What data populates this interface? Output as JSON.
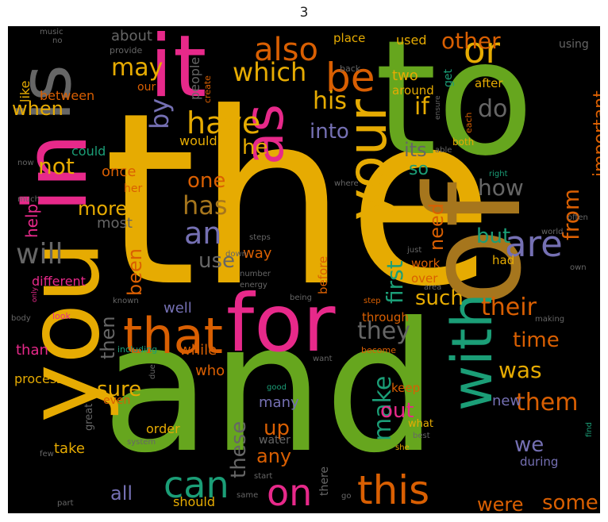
{
  "title": "3",
  "colors": {
    "gold": "#E6AB02",
    "green": "#66A61E",
    "pink": "#E7298A",
    "orange": "#D95F02",
    "teal": "#1B9E77",
    "purple": "#7570B3",
    "brown": "#A6761D",
    "gray": "#666666"
  },
  "words": [
    {
      "text": "the"
    },
    {
      "text": "and"
    },
    {
      "text": "to"
    },
    {
      "text": "of"
    },
    {
      "text": "you"
    },
    {
      "text": "in"
    },
    {
      "text": "it"
    },
    {
      "text": "is"
    },
    {
      "text": "for"
    },
    {
      "text": "that"
    },
    {
      "text": "your"
    },
    {
      "text": "as"
    },
    {
      "text": "with"
    },
    {
      "text": "or"
    },
    {
      "text": "be"
    },
    {
      "text": "this"
    },
    {
      "text": "can"
    },
    {
      "text": "on"
    },
    {
      "text": "are"
    },
    {
      "text": "an"
    },
    {
      "text": "also"
    },
    {
      "text": "have"
    },
    {
      "text": "will"
    },
    {
      "text": "which"
    },
    {
      "text": "from"
    },
    {
      "text": "other"
    },
    {
      "text": "by"
    },
    {
      "text": "was"
    },
    {
      "text": "they"
    },
    {
      "text": "their"
    },
    {
      "text": "them"
    },
    {
      "text": "important"
    },
    {
      "text": "not"
    },
    {
      "text": "has"
    },
    {
      "text": "if"
    },
    {
      "text": "his"
    },
    {
      "text": "at"
    },
    {
      "text": "such"
    },
    {
      "text": "first"
    },
    {
      "text": "but"
    },
    {
      "text": "do"
    },
    {
      "text": "how"
    },
    {
      "text": "more"
    },
    {
      "text": "make"
    },
    {
      "text": "these"
    },
    {
      "text": "use"
    },
    {
      "text": "one"
    },
    {
      "text": "he"
    },
    {
      "text": "may"
    },
    {
      "text": "been"
    },
    {
      "text": "when"
    },
    {
      "text": "time"
    },
    {
      "text": "into"
    },
    {
      "text": "need"
    },
    {
      "text": "sure"
    },
    {
      "text": "then"
    },
    {
      "text": "up"
    },
    {
      "text": "we"
    },
    {
      "text": "out"
    },
    {
      "text": "any"
    },
    {
      "text": "all"
    },
    {
      "text": "some"
    },
    {
      "text": "were"
    },
    {
      "text": "its"
    },
    {
      "text": "so"
    },
    {
      "text": "help"
    },
    {
      "text": "about"
    },
    {
      "text": "most"
    },
    {
      "text": "people"
    },
    {
      "text": "used"
    },
    {
      "text": "two"
    },
    {
      "text": "way"
    },
    {
      "text": "well"
    },
    {
      "text": "who"
    },
    {
      "text": "while"
    },
    {
      "text": "than"
    },
    {
      "text": "take"
    },
    {
      "text": "should"
    },
    {
      "text": "many"
    },
    {
      "text": "new"
    },
    {
      "text": "between"
    },
    {
      "text": "once"
    },
    {
      "text": "could"
    },
    {
      "text": "would"
    },
    {
      "text": "like"
    },
    {
      "text": "different"
    },
    {
      "text": "process"
    },
    {
      "text": "through"
    },
    {
      "text": "before"
    },
    {
      "text": "over"
    },
    {
      "text": "work"
    },
    {
      "text": "had"
    },
    {
      "text": "after"
    },
    {
      "text": "around"
    },
    {
      "text": "get"
    },
    {
      "text": "place"
    },
    {
      "text": "using"
    },
    {
      "text": "order"
    },
    {
      "text": "keep"
    },
    {
      "text": "during"
    },
    {
      "text": "her"
    },
    {
      "text": "our"
    },
    {
      "text": "even"
    },
    {
      "text": "great"
    },
    {
      "text": "there"
    },
    {
      "text": "water"
    },
    {
      "text": "what"
    },
    {
      "text": "each"
    },
    {
      "text": "both"
    },
    {
      "text": "including"
    },
    {
      "text": "become"
    },
    {
      "text": "known"
    },
    {
      "text": "body"
    },
    {
      "text": "look"
    },
    {
      "text": "only"
    },
    {
      "text": "music"
    },
    {
      "text": "no"
    },
    {
      "text": "provide"
    },
    {
      "text": "back"
    },
    {
      "text": "create"
    },
    {
      "text": "ensure"
    },
    {
      "text": "able"
    },
    {
      "text": "right"
    },
    {
      "text": "where"
    },
    {
      "text": "often"
    },
    {
      "text": "world"
    },
    {
      "text": "own"
    },
    {
      "text": "much"
    },
    {
      "text": "now"
    },
    {
      "text": "steps"
    },
    {
      "text": "down"
    },
    {
      "text": "just"
    },
    {
      "text": "area"
    },
    {
      "text": "number"
    },
    {
      "text": "energy"
    },
    {
      "text": "being"
    },
    {
      "text": "step"
    },
    {
      "text": "want"
    },
    {
      "text": "making"
    },
    {
      "text": "good"
    },
    {
      "text": "due"
    },
    {
      "text": "system"
    },
    {
      "text": "she"
    },
    {
      "text": "best"
    },
    {
      "text": "find"
    },
    {
      "text": "start"
    },
    {
      "text": "same"
    },
    {
      "text": "go"
    },
    {
      "text": "few"
    },
    {
      "text": "part"
    }
  ]
}
